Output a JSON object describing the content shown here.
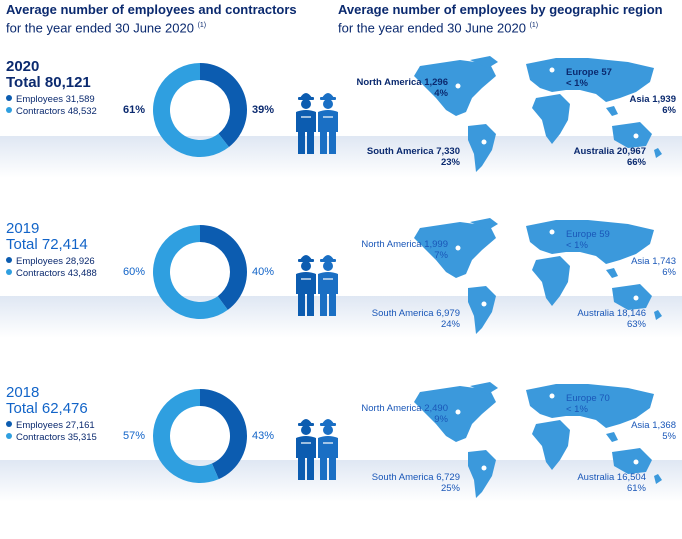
{
  "headers": {
    "left": {
      "title": "Average number of employees and contractors",
      "subtitle": "for the year ended 30 June 2020",
      "note": "(1)"
    },
    "right": {
      "title": "Average number of employees by geographic region",
      "subtitle": "for the year ended 30 June 2020",
      "note": "(1)"
    }
  },
  "colors": {
    "employees": "#0c5cb0",
    "contractors": "#2f9fe0",
    "map": "#3b99dc"
  },
  "chart_data": [
    {
      "type": "pie",
      "year": "2020",
      "total": "Total 80,121",
      "series": [
        {
          "name": "Employees",
          "label": "Employees 31,589",
          "value": 31589,
          "pct": "39%"
        },
        {
          "name": "Contractors",
          "label": "Contractors 48,532",
          "value": 48532,
          "pct": "61%"
        }
      ],
      "regions": [
        {
          "name": "North America",
          "label": "North America 1,296",
          "value": 1296,
          "pct": "4%"
        },
        {
          "name": "South America",
          "label": "South America 7,330",
          "value": 7330,
          "pct": "23%"
        },
        {
          "name": "Europe",
          "label": "Europe 57",
          "value": 57,
          "pct": "< 1%"
        },
        {
          "name": "Asia",
          "label": "Asia 1,939",
          "value": 1939,
          "pct": "6%"
        },
        {
          "name": "Australia",
          "label": "Australia 20,967",
          "value": 20967,
          "pct": "66%"
        }
      ]
    },
    {
      "type": "pie",
      "year": "2019",
      "total": "Total 72,414",
      "series": [
        {
          "name": "Employees",
          "label": "Employees 28,926",
          "value": 28926,
          "pct": "40%"
        },
        {
          "name": "Contractors",
          "label": "Contractors 43,488",
          "value": 43488,
          "pct": "60%"
        }
      ],
      "regions": [
        {
          "name": "North America",
          "label": "North America 1,999",
          "value": 1999,
          "pct": "7%"
        },
        {
          "name": "South America",
          "label": "South America 6,979",
          "value": 6979,
          "pct": "24%"
        },
        {
          "name": "Europe",
          "label": "Europe 59",
          "value": 59,
          "pct": "< 1%"
        },
        {
          "name": "Asia",
          "label": "Asia 1,743",
          "value": 1743,
          "pct": "6%"
        },
        {
          "name": "Australia",
          "label": "Australia 18,146",
          "value": 18146,
          "pct": "63%"
        }
      ]
    },
    {
      "type": "pie",
      "year": "2018",
      "total": "Total 62,476",
      "series": [
        {
          "name": "Employees",
          "label": "Employees 27,161",
          "value": 27161,
          "pct": "43%"
        },
        {
          "name": "Contractors",
          "label": "Contractors 35,315",
          "value": 35315,
          "pct": "57%"
        }
      ],
      "regions": [
        {
          "name": "North America",
          "label": "North America 2,490",
          "value": 2490,
          "pct": "9%"
        },
        {
          "name": "South America",
          "label": "South America 6,729",
          "value": 6729,
          "pct": "25%"
        },
        {
          "name": "Europe",
          "label": "Europe 70",
          "value": 70,
          "pct": "< 1%"
        },
        {
          "name": "Asia",
          "label": "Asia 1,368",
          "value": 1368,
          "pct": "5%"
        },
        {
          "name": "Australia",
          "label": "Australia 16,504",
          "value": 16504,
          "pct": "61%"
        }
      ]
    }
  ]
}
